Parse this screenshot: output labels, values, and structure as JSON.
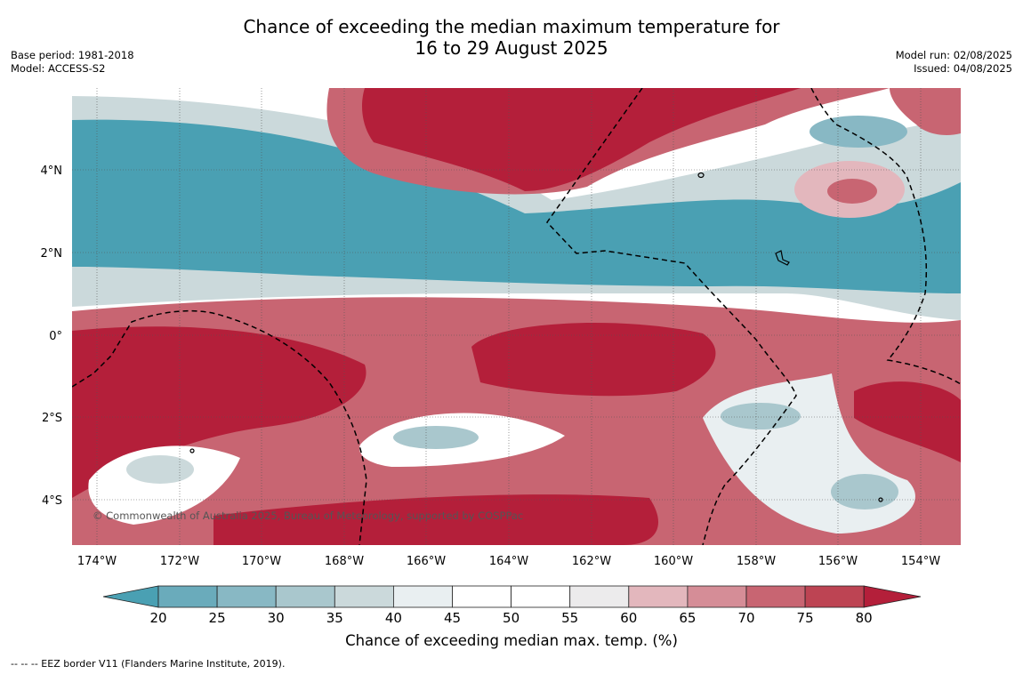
{
  "header": {
    "title_line1": "Chance of exceeding the median maximum temperature for",
    "title_line2": "16 to 29 August 2025",
    "base_period": "Base period: 1981-2018",
    "model": "Model: ACCESS-S2",
    "model_run": "Model run: 02/08/2025",
    "issued": "Issued: 04/08/2025"
  },
  "map": {
    "lon_labels": [
      "174°W",
      "172°W",
      "170°W",
      "168°W",
      "166°W",
      "164°W",
      "162°W",
      "160°W",
      "158°W",
      "156°W",
      "154°W"
    ],
    "lat_labels": [
      "4°N",
      "2°N",
      "0°",
      "2°S",
      "4°S"
    ],
    "copyright": "© Commonwealth of Australia 2025, Bureau of Meteorology, supported by COSPPac"
  },
  "legend": {
    "ticks": [
      "20",
      "25",
      "30",
      "35",
      "40",
      "45",
      "50",
      "55",
      "60",
      "65",
      "70",
      "75",
      "80"
    ],
    "label": "Chance of exceeding median max. temp. (%)",
    "colors": [
      "#4aa0b3",
      "#6aabbb",
      "#88b8c4",
      "#a9c7cd",
      "#cbd9db",
      "#e9eff1",
      "#ffffff",
      "#ffffff",
      "#ecebec",
      "#e3b7bd",
      "#d58d97",
      "#c86572",
      "#bd4453",
      "#b41f3a"
    ]
  },
  "footnote": "--  --  -- EEZ border V11 (Flanders Marine Institute, 2019)."
}
